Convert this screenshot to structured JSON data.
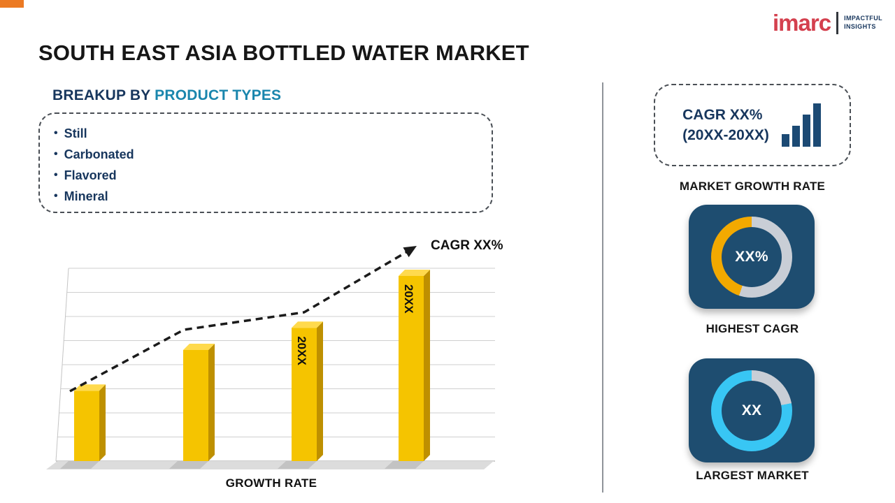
{
  "page": {
    "accent_bar_color": "#EC7A23",
    "divider_color": "#8F9399"
  },
  "logo": {
    "brand": "imarc",
    "tagline1": "IMPACTFUL",
    "tagline2": "INSIGHTS",
    "brand_color": "#D4404E",
    "tagline_color": "#17365D"
  },
  "title": "SOUTH EAST ASIA BOTTLED WATER MARKET",
  "breakup": {
    "heading_prefix": "BREAKUP BY ",
    "heading_highlight": "PRODUCT TYPES",
    "items": [
      "Still",
      "Carbonated",
      "Flavored",
      "Mineral"
    ]
  },
  "chart_data": {
    "type": "bar",
    "categories": [
      "",
      "",
      "20XX",
      "20XX"
    ],
    "values": [
      38,
      60,
      72,
      100
    ],
    "ylim": [
      0,
      100
    ],
    "grid": true,
    "title": "",
    "xlabel": "GROWTH RATE",
    "ylabel": "",
    "trend_annotation": "CAGR XX%",
    "trend": "dashed rising arrow above bars",
    "bar_color": "#F5C400",
    "bar_side_color": "#BE9000",
    "bar_top_color": "#FFDA4D",
    "trend_color": "#1B1B1B"
  },
  "sidebar": {
    "growth_box": {
      "line1": "CAGR XX%",
      "line2": "(20XX-20XX)",
      "caption": "MARKET GROWTH RATE",
      "icon_color": "#1C4A74"
    },
    "cards": [
      {
        "value": "XX%",
        "caption": "HIGHEST CAGR",
        "bg": "#1E4D70",
        "ring_color": "#F2A900",
        "ring_base": "#C9CED6",
        "ring_offset_pct": 55
      },
      {
        "value": "XX",
        "caption": "LARGEST MARKET",
        "bg": "#1E4D70",
        "ring_color": "#38C6F4",
        "ring_base": "#C9CED6",
        "ring_offset_pct": 22
      }
    ]
  }
}
